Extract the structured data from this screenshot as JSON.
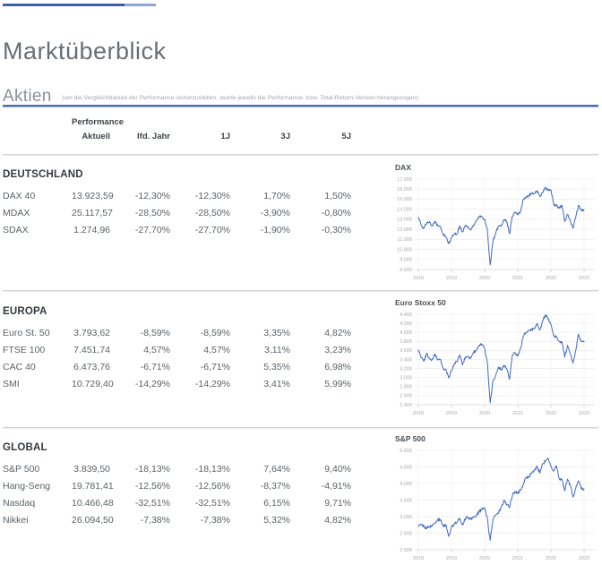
{
  "page": {
    "title": "Marktüberblick",
    "section_title": "Aktien",
    "section_note": "(um die Vergleichbarkeit der Performance sicherzustellen, wurde jeweils die Performance- bzw. Total-Return-Version herangezogen)"
  },
  "table": {
    "header_group": "Performance",
    "columns": [
      "Aktuell",
      "lfd. Jahr",
      "1J",
      "3J",
      "5J"
    ],
    "groups": [
      {
        "name": "DEUTSCHLAND",
        "rows": [
          {
            "label": "DAX 40",
            "values": [
              "13.923,59",
              "-12,30%",
              "-12,30%",
              "1,70%",
              "1,50%"
            ]
          },
          {
            "label": "MDAX",
            "values": [
              "25.117,57",
              "-28,50%",
              "-28,50%",
              "-3,90%",
              "-0,80%"
            ]
          },
          {
            "label": "SDAX",
            "values": [
              "1.274,96",
              "-27,70%",
              "-27,70%",
              "-1,90%",
              "-0,30%"
            ]
          }
        ]
      },
      {
        "name": "EUROPA",
        "rows": [
          {
            "label": "Euro St. 50",
            "values": [
              "3.793,62",
              "-8,59%",
              "-8,59%",
              "3,35%",
              "4,82%"
            ]
          },
          {
            "label": "FTSE 100",
            "values": [
              "7.451,74",
              "4,57%",
              "4,57%",
              "3,11%",
              "3,23%"
            ]
          },
          {
            "label": "CAC 40",
            "values": [
              "6.473,76",
              "-6,71%",
              "-6,71%",
              "5,35%",
              "6,98%"
            ]
          },
          {
            "label": "SMI",
            "values": [
              "10.729,40",
              "-14,29%",
              "-14,29%",
              "3,41%",
              "5,99%"
            ]
          }
        ]
      },
      {
        "name": "GLOBAL",
        "rows": [
          {
            "label": "S&P 500",
            "values": [
              "3.839,50",
              "-18,13%",
              "-18,13%",
              "7,64%",
              "9,40%"
            ]
          },
          {
            "label": "Hang-Seng",
            "values": [
              "19.781,41",
              "-12,56%",
              "-12,56%",
              "-8,37%",
              "-4,91%"
            ]
          },
          {
            "label": "Nasdaq",
            "values": [
              "10.466,48",
              "-32,51%",
              "-32,51%",
              "6,15%",
              "9,71%"
            ]
          },
          {
            "label": "Nikkei",
            "values": [
              "26.094,50",
              "-7,38%",
              "-7,38%",
              "5,32%",
              "4,82%"
            ]
          }
        ]
      }
    ]
  },
  "chart_data": [
    {
      "type": "line",
      "title": "DAX",
      "x_labels": [
        "2018",
        "2019",
        "2020",
        "2021",
        "2022",
        "2023"
      ],
      "ylim": [
        8000,
        17000
      ],
      "y_step": 1000,
      "grid": true,
      "values_monthly_2018_2023": [
        13190,
        12440,
        12100,
        12610,
        12770,
        12310,
        12810,
        12360,
        12250,
        11450,
        11260,
        10560,
        11170,
        11520,
        11530,
        12340,
        11730,
        12400,
        12190,
        11940,
        12430,
        12870,
        13240,
        13250,
        12980,
        11890,
        8450,
        10860,
        11590,
        12310,
        12310,
        12950,
        12760,
        11560,
        13290,
        13720,
        13430,
        13790,
        15010,
        15140,
        15420,
        15530,
        15540,
        15840,
        15260,
        15690,
        16180,
        15880,
        15920,
        14460,
        14410,
        14100,
        14390,
        12780,
        13480,
        12830,
        12110,
        13250,
        14400,
        13920,
        13924
      ]
    },
    {
      "type": "line",
      "title": "Euro Stoxx 50",
      "x_labels": [
        "2018",
        "2019",
        "2020",
        "2021",
        "2022",
        "2023"
      ],
      "ylim": [
        2400,
        4400
      ],
      "y_step": 200,
      "grid": true,
      "values_monthly_2018_2023": [
        3610,
        3440,
        3360,
        3540,
        3410,
        3400,
        3525,
        3390,
        3400,
        3200,
        3170,
        2990,
        3160,
        3300,
        3350,
        3500,
        3280,
        3450,
        3470,
        3430,
        3570,
        3600,
        3700,
        3745,
        3640,
        3330,
        2440,
        2930,
        3050,
        3230,
        3170,
        3270,
        3190,
        2960,
        3490,
        3550,
        3480,
        3640,
        3920,
        4000,
        4040,
        4060,
        4090,
        4200,
        4050,
        4250,
        4380,
        4300,
        4175,
        3920,
        3900,
        3800,
        3790,
        3450,
        3710,
        3520,
        3320,
        3610,
        3960,
        3790,
        3794
      ]
    },
    {
      "type": "line",
      "title": "S&P 500",
      "x_labels": [
        "2018",
        "2019",
        "2020",
        "2021",
        "2022",
        "2023"
      ],
      "ylim": [
        2000,
        5000
      ],
      "y_step": 500,
      "grid": true,
      "values_monthly_2018_2023": [
        2700,
        2760,
        2710,
        2650,
        2700,
        2720,
        2810,
        2900,
        2910,
        2710,
        2760,
        2400,
        2700,
        2780,
        2830,
        2940,
        2750,
        2940,
        2980,
        2930,
        2980,
        3040,
        3140,
        3230,
        3270,
        2950,
        2280,
        2910,
        3040,
        3100,
        3270,
        3500,
        3360,
        3270,
        3620,
        3760,
        3710,
        3810,
        3970,
        4180,
        4200,
        4300,
        4400,
        4520,
        4310,
        4600,
        4660,
        4770,
        4520,
        4370,
        4530,
        4130,
        4130,
        3780,
        4130,
        3950,
        3590,
        3870,
        4080,
        3840,
        3839
      ]
    }
  ],
  "colors": {
    "accent_blue": "#4e6cb2",
    "chart_line": "#3f6ac1",
    "grid_gray": "#ececec",
    "axis_gray": "#dcdcdc"
  }
}
